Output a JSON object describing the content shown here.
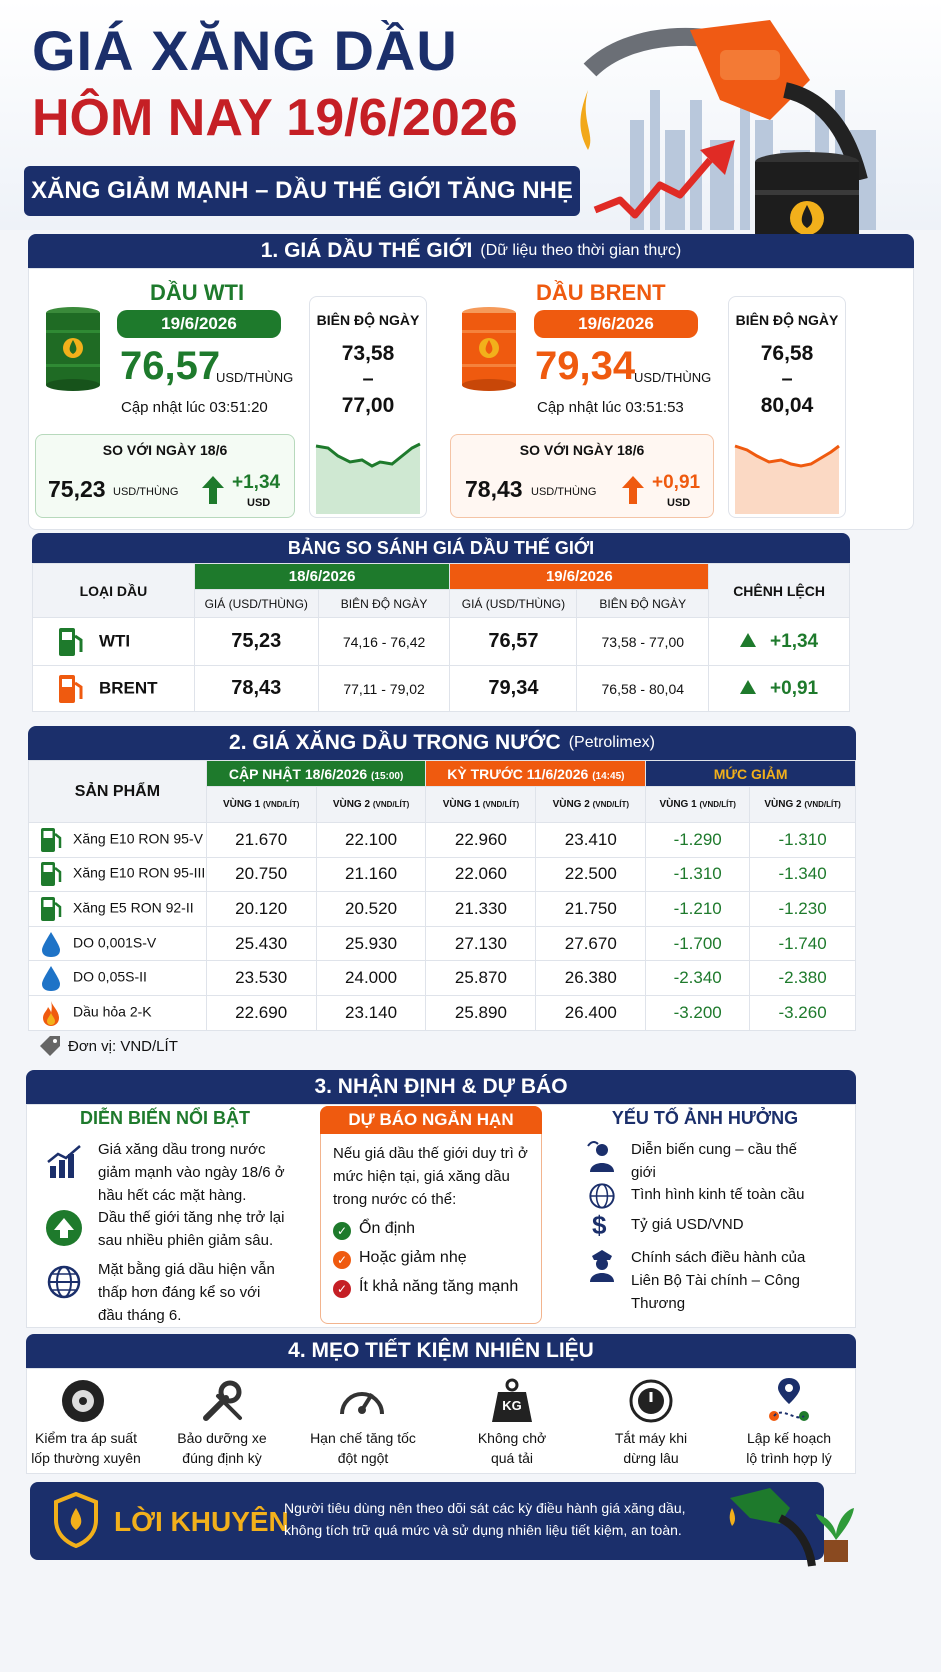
{
  "header": {
    "title1": "GIÁ XĂNG DẦU",
    "title2": "HÔM NAY 19/6/2026",
    "tagline": "XĂNG GIẢM MẠNH – DẦU THẾ GIỚI TĂNG NHẸ"
  },
  "s1": {
    "title": "1. GIÁ DẦU THẾ GIỚI",
    "note": "(Dữ liệu theo thời gian thực)",
    "wti": {
      "name": "DẦU WTI",
      "date": "19/6/2026",
      "price": "76,57",
      "unit": "USD/THÙNG",
      "updated": "Cập nhật lúc 03:51:20",
      "range_label": "BIÊN ĐỘ NGÀY",
      "low": "73,58",
      "dash": "–",
      "high": "77,00",
      "cmp_label": "SO VỚI NGÀY 18/6",
      "prev": "75,23",
      "prev_unit": "USD/THÙNG",
      "change": "+1,34",
      "change_unit": "USD"
    },
    "brent": {
      "name": "DẦU BRENT",
      "date": "19/6/2026",
      "price": "79,34",
      "unit": "USD/THÙNG",
      "updated": "Cập nhật lúc 03:51:53",
      "range_label": "BIÊN ĐỘ NGÀY",
      "low": "76,58",
      "dash": "–",
      "high": "80,04",
      "cmp_label": "SO VỚI NGÀY 18/6",
      "prev": "78,43",
      "prev_unit": "USD/THÙNG",
      "change": "+0,91",
      "change_unit": "USD"
    },
    "colors": {
      "green": "#1e7a2c",
      "orange": "#ef5a0f",
      "navy": "#1b2f6b"
    }
  },
  "compare": {
    "title": "BẢNG SO SÁNH GIÁ DẦU THẾ GIỚI",
    "col_type": "LOẠI DẦU",
    "d1": "18/6/2026",
    "d2": "19/6/2026",
    "diff": "CHÊNH LỆCH",
    "price_h": "GIÁ (USD/THÙNG)",
    "range_h": "BIÊN ĐỘ NGÀY",
    "rows": [
      {
        "name": "WTI",
        "p1": "75,23",
        "r1": "74,16 - 76,42",
        "p2": "76,57",
        "r2": "73,58 - 77,00",
        "d": "+1,34"
      },
      {
        "name": "BRENT",
        "p1": "78,43",
        "r1": "77,11 - 79,02",
        "p2": "79,34",
        "r2": "76,58 - 80,04",
        "d": "+0,91"
      }
    ]
  },
  "s2": {
    "title": "2. GIÁ XĂNG DẦU TRONG NƯỚC",
    "note": "(Petrolimex)",
    "col_product": "SẢN PHẨM",
    "g1": "CẬP NHẬT 18/6/2026",
    "g1_time": "(15:00)",
    "g2": "KỲ TRƯỚC 11/6/2026",
    "g2_time": "(14:45)",
    "g3": "MỨC GIẢM",
    "z1": "VÙNG 1",
    "z2": "VÙNG 2",
    "zunit": "(VND/LÍT)",
    "rows": [
      {
        "name": "Xăng E10 RON 95-V",
        "icon": "fuel-pump-icon",
        "a": "21.670",
        "b": "22.100",
        "c": "22.960",
        "d": "23.410",
        "e": "-1.290",
        "f": "-1.310"
      },
      {
        "name": "Xăng E10 RON 95-III",
        "icon": "fuel-pump-icon",
        "a": "20.750",
        "b": "21.160",
        "c": "22.060",
        "d": "22.500",
        "e": "-1.310",
        "f": "-1.340"
      },
      {
        "name": "Xăng E5 RON 92-II",
        "icon": "fuel-pump-icon",
        "a": "20.120",
        "b": "20.520",
        "c": "21.330",
        "d": "21.750",
        "e": "-1.210",
        "f": "-1.230"
      },
      {
        "name": "DO 0,001S-V",
        "icon": "blue-drop-icon",
        "a": "25.430",
        "b": "25.930",
        "c": "27.130",
        "d": "27.670",
        "e": "-1.700",
        "f": "-1.740"
      },
      {
        "name": "DO 0,05S-II",
        "icon": "blue-drop-icon",
        "a": "23.530",
        "b": "24.000",
        "c": "25.870",
        "d": "26.380",
        "e": "-2.340",
        "f": "-2.380"
      },
      {
        "name": "Dầu hỏa 2-K",
        "icon": "flame-icon",
        "a": "22.690",
        "b": "23.140",
        "c": "25.890",
        "d": "26.400",
        "e": "-3.200",
        "f": "-3.260"
      }
    ],
    "unit": "Đơn vị: VND/LÍT"
  },
  "s3": {
    "title": "3. NHẬN ĐỊNH & DỰ BÁO",
    "c1": {
      "title": "DIỄN BIẾN NỔI BẬT",
      "items": [
        "Giá xăng dầu trong nước giảm mạnh vào ngày 18/6 ở hầu hết các mặt hàng.",
        "Dầu thế giới tăng nhẹ trở lại sau nhiều phiên giảm sâu.",
        "Mặt bằng giá dầu hiện vẫn thấp hơn đáng kể so với đầu tháng 6."
      ]
    },
    "c2": {
      "title": "DỰ BÁO NGẮN HẠN",
      "intro": "Nếu giá dầu thế giới duy trì ở mức hiện tại, giá xăng dầu trong nước có thể:",
      "items": [
        "Ổn định",
        "Hoặc giảm nhẹ",
        "Ít khả năng tăng mạnh"
      ]
    },
    "c3": {
      "title": "YẾU TỐ ẢNH HƯỞNG",
      "items": [
        "Diễn biến cung – cầu thế giới",
        "Tình hình kinh tế toàn cầu",
        "Tỷ giá USD/VND",
        "Chính sách điều hành của Liên Bộ Tài chính – Công Thương"
      ]
    }
  },
  "s4": {
    "title": "4. MẸO TIẾT KIỆM NHIÊN LIỆU",
    "kg": "KG",
    "tips": [
      [
        "Kiểm tra áp suất",
        "lốp thường xuyên"
      ],
      [
        "Bảo dưỡng xe",
        "đúng định kỳ"
      ],
      [
        "Hạn chế tăng tốc",
        "đột ngột"
      ],
      [
        "Không chở",
        "quá tải"
      ],
      [
        "Tắt máy khi",
        "dừng lâu"
      ],
      [
        "Lập kế hoạch",
        "lộ trình hợp lý"
      ]
    ]
  },
  "advice": {
    "label": "LỜI KHUYÊN",
    "line1": "Người tiêu dùng nên theo dõi sát các kỳ điều hành giá xăng dầu,",
    "line2": "không tích trữ quá mức và sử dụng nhiên liệu tiết kiệm, an toàn."
  }
}
